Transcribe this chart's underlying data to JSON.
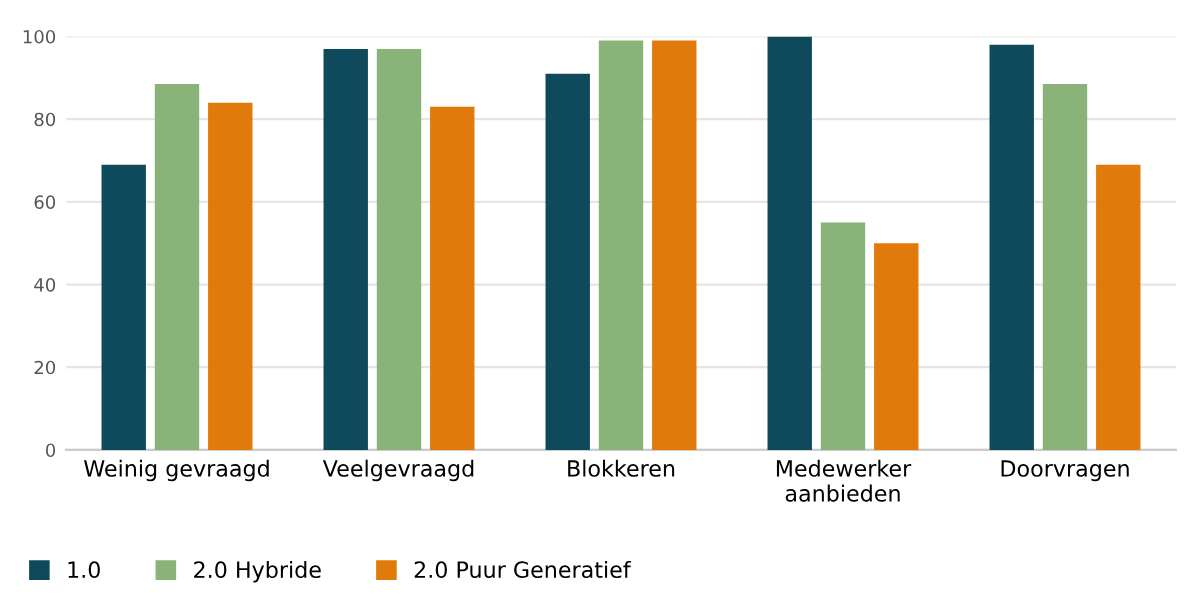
{
  "chart_data": {
    "type": "bar",
    "categories": [
      "Weinig gevraagd",
      "Veelgevraagd",
      "Blokkeren",
      "Medewerker\naanbieden",
      "Doorvragen"
    ],
    "series": [
      {
        "name": "1.0",
        "color": "#0f4a5c",
        "values": [
          69,
          97,
          91,
          100,
          98
        ]
      },
      {
        "name": "2.0 Hybride",
        "color": "#8ab37a",
        "values": [
          88.5,
          97,
          99,
          55,
          88.5
        ]
      },
      {
        "name": "2.0 Puur Generatief",
        "color": "#e07b0b",
        "values": [
          84,
          83,
          99,
          50,
          69
        ]
      }
    ],
    "ylim": [
      0,
      100
    ],
    "yticks": [
      0,
      20,
      40,
      60,
      80,
      100
    ],
    "grid": "y",
    "legend": "bottom left"
  }
}
